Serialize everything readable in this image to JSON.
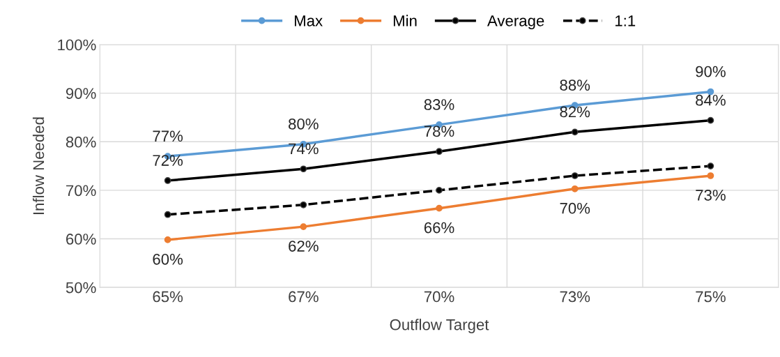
{
  "chart_data": {
    "type": "line",
    "xlabel": "Outflow Target",
    "ylabel": "Inflow Needed",
    "categories": [
      "65%",
      "67%",
      "70%",
      "73%",
      "75%"
    ],
    "ylim": [
      50,
      100
    ],
    "yticks": [
      {
        "value": 50,
        "label": "50%"
      },
      {
        "value": 60,
        "label": "60%"
      },
      {
        "value": 70,
        "label": "70%"
      },
      {
        "value": 80,
        "label": "80%"
      },
      {
        "value": 90,
        "label": "90%"
      },
      {
        "value": 100,
        "label": "100%"
      }
    ],
    "grid": true,
    "legend": "top",
    "marker": "circle",
    "series": [
      {
        "name": "Max",
        "color": "#5b9bd5",
        "values": [
          77,
          79.5,
          83.5,
          87.5,
          90.3
        ],
        "value_labels": [
          "77%",
          "80%",
          "83%",
          "88%",
          "90%"
        ]
      },
      {
        "name": "Min",
        "color": "#ed7d31",
        "values": [
          59.8,
          62.5,
          66.3,
          70.3,
          73
        ],
        "value_labels": [
          "60%",
          "62%",
          "66%",
          "70%",
          "73%"
        ]
      },
      {
        "name": "Average",
        "color": "#000000",
        "values": [
          72,
          74.4,
          78,
          82,
          84.4
        ],
        "value_labels": [
          "72%",
          "74%",
          "78%",
          "82%",
          "84%"
        ]
      },
      {
        "name": "1:1",
        "color": "#000000",
        "line_style": "dashed",
        "values": [
          65,
          67,
          70,
          73,
          75
        ]
      }
    ]
  }
}
